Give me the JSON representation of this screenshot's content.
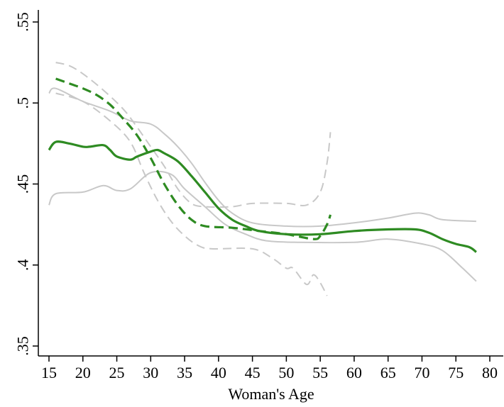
{
  "chart_data": {
    "type": "line",
    "title": "",
    "xlabel": "Woman's Age",
    "ylabel": "",
    "xlim": [
      14,
      81
    ],
    "ylim": [
      0.345,
      0.556
    ],
    "x_ticks": [
      15,
      20,
      25,
      30,
      35,
      40,
      45,
      50,
      55,
      60,
      65,
      70,
      75,
      80
    ],
    "x_tick_labels": [
      "15",
      "20",
      "25",
      "30",
      "35",
      "40",
      "45",
      "50",
      "55",
      "60",
      "65",
      "70",
      "75",
      "80"
    ],
    "y_ticks": [
      0.35,
      0.4,
      0.45,
      0.5,
      0.55
    ],
    "y_tick_labels": [
      ".35",
      ".4",
      ".45",
      ".5",
      ".55"
    ],
    "grid": false,
    "legend": "none",
    "series": [
      {
        "style": "solid",
        "color": "#2e8b22",
        "width": 3.2,
        "points": [
          [
            15,
            0.471
          ],
          [
            16,
            0.476
          ],
          [
            18,
            0.475
          ],
          [
            20,
            0.473
          ],
          [
            21,
            0.473
          ],
          [
            23,
            0.474
          ],
          [
            24,
            0.471
          ],
          [
            25,
            0.467
          ],
          [
            27,
            0.465
          ],
          [
            28,
            0.467
          ],
          [
            30,
            0.47
          ],
          [
            31,
            0.471
          ],
          [
            32,
            0.469
          ],
          [
            34,
            0.464
          ],
          [
            36,
            0.455
          ],
          [
            38,
            0.445
          ],
          [
            40,
            0.435
          ],
          [
            42,
            0.428
          ],
          [
            44,
            0.424
          ],
          [
            46,
            0.421
          ],
          [
            50,
            0.419
          ],
          [
            55,
            0.419
          ],
          [
            60,
            0.421
          ],
          [
            65,
            0.422
          ],
          [
            69,
            0.422
          ],
          [
            71,
            0.42
          ],
          [
            73,
            0.416
          ],
          [
            75,
            0.413
          ],
          [
            77,
            0.411
          ],
          [
            78,
            0.408
          ]
        ]
      },
      {
        "style": "solid",
        "color": "#c8c8c8",
        "width": 2,
        "points": [
          [
            15,
            0.506
          ],
          [
            16,
            0.509
          ],
          [
            20,
            0.501
          ],
          [
            24,
            0.495
          ],
          [
            27,
            0.489
          ],
          [
            30,
            0.487
          ],
          [
            32,
            0.481
          ],
          [
            34,
            0.473
          ],
          [
            36,
            0.463
          ],
          [
            38,
            0.451
          ],
          [
            40,
            0.44
          ],
          [
            42,
            0.432
          ],
          [
            45,
            0.426
          ],
          [
            50,
            0.424
          ],
          [
            55,
            0.424
          ],
          [
            60,
            0.426
          ],
          [
            65,
            0.429
          ],
          [
            69,
            0.432
          ],
          [
            71,
            0.431
          ],
          [
            73,
            0.428
          ],
          [
            78,
            0.427
          ]
        ]
      },
      {
        "style": "solid",
        "color": "#c8c8c8",
        "width": 2,
        "points": [
          [
            15,
            0.437
          ],
          [
            16,
            0.444
          ],
          [
            20,
            0.445
          ],
          [
            23,
            0.449
          ],
          [
            25,
            0.446
          ],
          [
            27,
            0.447
          ],
          [
            30,
            0.457
          ],
          [
            33,
            0.456
          ],
          [
            35,
            0.447
          ],
          [
            38,
            0.436
          ],
          [
            41,
            0.425
          ],
          [
            44,
            0.419
          ],
          [
            47,
            0.415
          ],
          [
            52,
            0.414
          ],
          [
            60,
            0.414
          ],
          [
            65,
            0.416
          ],
          [
            70,
            0.413
          ],
          [
            73,
            0.409
          ],
          [
            76,
            0.398
          ],
          [
            78,
            0.39
          ]
        ]
      },
      {
        "style": "dashed",
        "color": "#2e8b22",
        "width": 3.2,
        "points": [
          [
            16,
            0.515
          ],
          [
            18,
            0.512
          ],
          [
            20,
            0.509
          ],
          [
            22,
            0.505
          ],
          [
            24,
            0.499
          ],
          [
            26,
            0.49
          ],
          [
            28,
            0.48
          ],
          [
            30,
            0.466
          ],
          [
            32,
            0.45
          ],
          [
            34,
            0.437
          ],
          [
            36,
            0.428
          ],
          [
            38,
            0.424
          ],
          [
            42,
            0.423
          ],
          [
            46,
            0.421
          ],
          [
            50,
            0.419
          ],
          [
            54,
            0.416
          ],
          [
            55,
            0.418
          ],
          [
            56,
            0.425
          ],
          [
            56.5,
            0.431
          ]
        ]
      },
      {
        "style": "dashed",
        "color": "#c8c8c8",
        "width": 2,
        "points": [
          [
            16,
            0.525
          ],
          [
            18,
            0.523
          ],
          [
            20,
            0.518
          ],
          [
            23,
            0.508
          ],
          [
            26,
            0.496
          ],
          [
            28,
            0.485
          ],
          [
            30,
            0.473
          ],
          [
            32,
            0.461
          ],
          [
            34,
            0.447
          ],
          [
            36,
            0.438
          ],
          [
            38,
            0.436
          ],
          [
            42,
            0.436
          ],
          [
            45,
            0.438
          ],
          [
            50,
            0.438
          ],
          [
            53,
            0.437
          ],
          [
            55,
            0.445
          ],
          [
            56,
            0.463
          ],
          [
            56.5,
            0.482
          ]
        ]
      },
      {
        "style": "dashed",
        "color": "#c8c8c8",
        "width": 2,
        "points": [
          [
            16,
            0.506
          ],
          [
            20,
            0.501
          ],
          [
            24,
            0.489
          ],
          [
            27,
            0.476
          ],
          [
            29,
            0.457
          ],
          [
            31,
            0.44
          ],
          [
            33,
            0.427
          ],
          [
            35,
            0.418
          ],
          [
            37,
            0.412
          ],
          [
            39,
            0.41
          ],
          [
            45,
            0.41
          ],
          [
            48,
            0.404
          ],
          [
            50,
            0.398
          ],
          [
            51,
            0.398
          ],
          [
            53,
            0.388
          ],
          [
            54,
            0.394
          ],
          [
            55,
            0.389
          ],
          [
            56,
            0.381
          ]
        ]
      }
    ]
  }
}
